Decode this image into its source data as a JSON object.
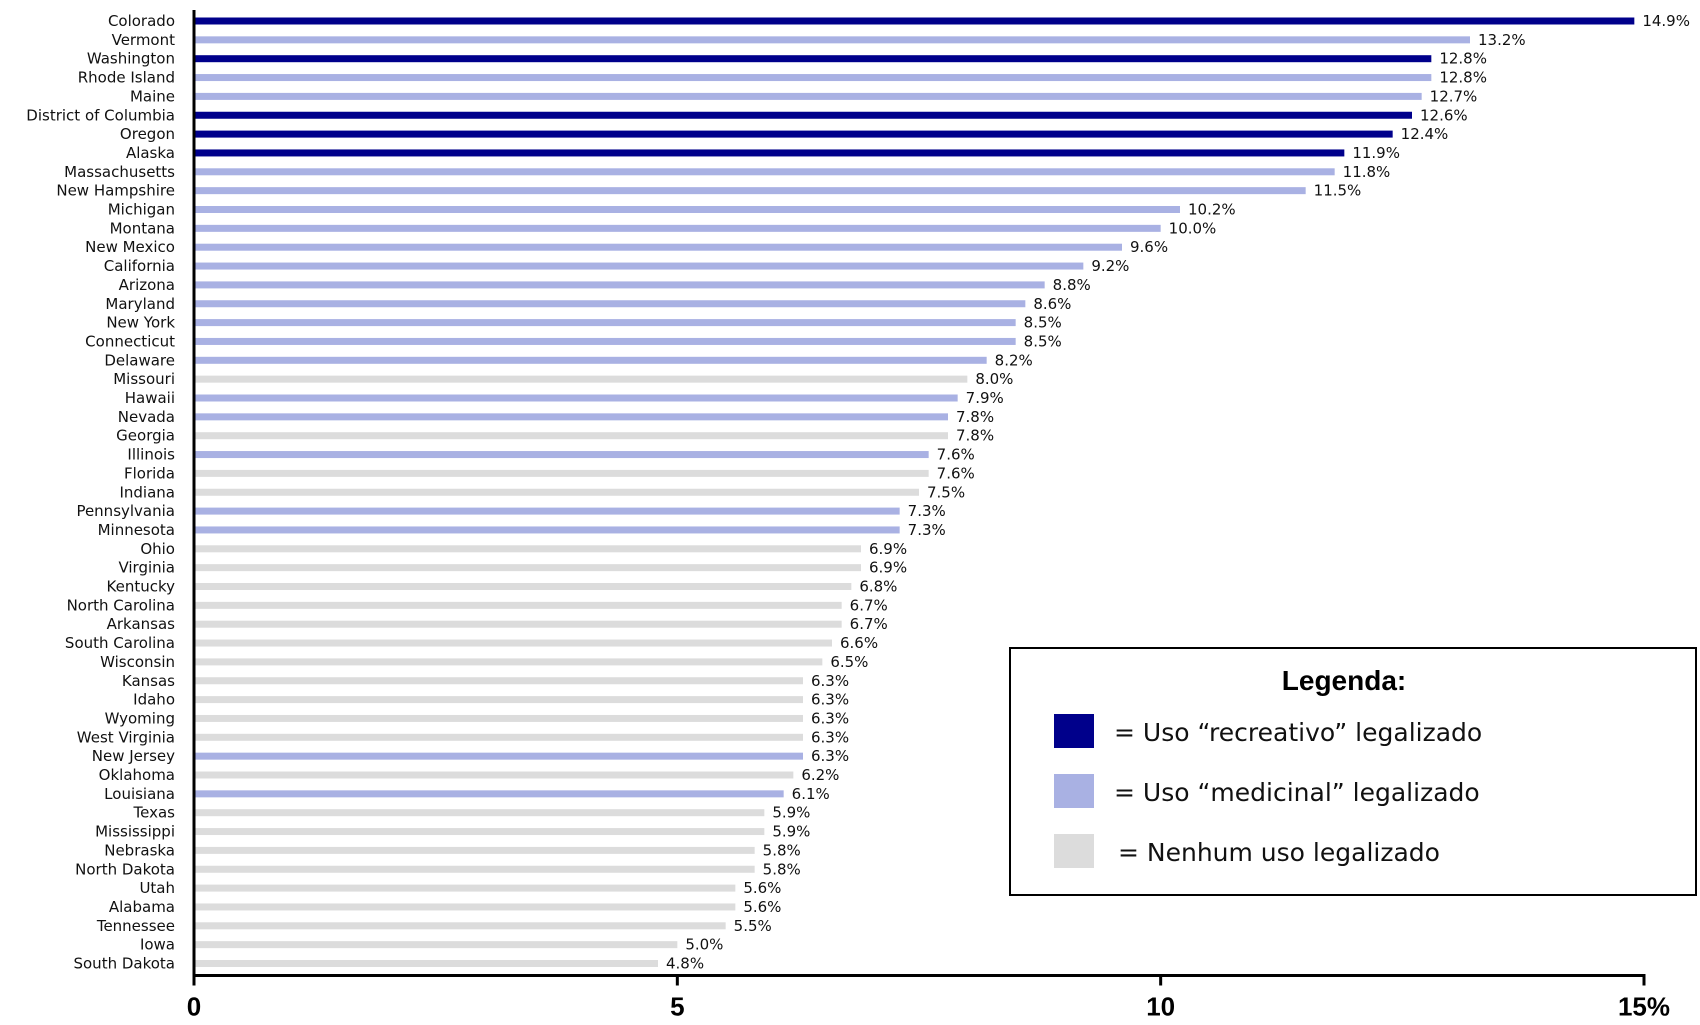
{
  "chart_data": {
    "type": "bar",
    "orientation": "horizontal",
    "title": "",
    "xlabel": "",
    "ylabel": "",
    "xlim": [
      0,
      15
    ],
    "x_ticks": [
      {
        "value": 0,
        "label": "0"
      },
      {
        "value": 5,
        "label": "5"
      },
      {
        "value": 10,
        "label": "10"
      },
      {
        "value": 15,
        "label": "15%"
      }
    ],
    "grid": false,
    "legend": {
      "title": "Legenda:",
      "placement": "bottom-right",
      "entries": [
        {
          "key": "recreational",
          "label": "= Uso “recreativo” legalizado",
          "color": "#00008B"
        },
        {
          "key": "medicinal",
          "label": "= Uso “medicinal” legalizado",
          "color": "#A9B1E3"
        },
        {
          "key": "none",
          "label": "= Nenhum uso legalizado",
          "color": "#DCDCDC"
        }
      ]
    },
    "bars": [
      {
        "category": "Colorado",
        "value": 14.9,
        "label": "14.9%",
        "group": "recreational"
      },
      {
        "category": "Vermont",
        "value": 13.2,
        "label": "13.2%",
        "group": "medicinal"
      },
      {
        "category": "Washington",
        "value": 12.8,
        "label": "12.8%",
        "group": "recreational"
      },
      {
        "category": "Rhode Island",
        "value": 12.8,
        "label": "12.8%",
        "group": "medicinal"
      },
      {
        "category": "Maine",
        "value": 12.7,
        "label": "12.7%",
        "group": "medicinal"
      },
      {
        "category": "District of Columbia",
        "value": 12.6,
        "label": "12.6%",
        "group": "recreational"
      },
      {
        "category": "Oregon",
        "value": 12.4,
        "label": "12.4%",
        "group": "recreational"
      },
      {
        "category": "Alaska",
        "value": 11.9,
        "label": "11.9%",
        "group": "recreational"
      },
      {
        "category": "Massachusetts",
        "value": 11.8,
        "label": "11.8%",
        "group": "medicinal"
      },
      {
        "category": "New Hampshire",
        "value": 11.5,
        "label": "11.5%",
        "group": "medicinal"
      },
      {
        "category": "Michigan",
        "value": 10.2,
        "label": "10.2%",
        "group": "medicinal"
      },
      {
        "category": "Montana",
        "value": 10.0,
        "label": "10.0%",
        "group": "medicinal"
      },
      {
        "category": "New Mexico",
        "value": 9.6,
        "label": "9.6%",
        "group": "medicinal"
      },
      {
        "category": "California",
        "value": 9.2,
        "label": "9.2%",
        "group": "medicinal"
      },
      {
        "category": "Arizona",
        "value": 8.8,
        "label": "8.8%",
        "group": "medicinal"
      },
      {
        "category": "Maryland",
        "value": 8.6,
        "label": "8.6%",
        "group": "medicinal"
      },
      {
        "category": "New York",
        "value": 8.5,
        "label": "8.5%",
        "group": "medicinal"
      },
      {
        "category": "Connecticut",
        "value": 8.5,
        "label": "8.5%",
        "group": "medicinal"
      },
      {
        "category": "Delaware",
        "value": 8.2,
        "label": "8.2%",
        "group": "medicinal"
      },
      {
        "category": "Missouri",
        "value": 8.0,
        "label": "8.0%",
        "group": "none"
      },
      {
        "category": "Hawaii",
        "value": 7.9,
        "label": "7.9%",
        "group": "medicinal"
      },
      {
        "category": "Nevada",
        "value": 7.8,
        "label": "7.8%",
        "group": "medicinal"
      },
      {
        "category": "Georgia",
        "value": 7.8,
        "label": "7.8%",
        "group": "none"
      },
      {
        "category": "Illinois",
        "value": 7.6,
        "label": "7.6%",
        "group": "medicinal"
      },
      {
        "category": "Florida",
        "value": 7.6,
        "label": "7.6%",
        "group": "none"
      },
      {
        "category": "Indiana",
        "value": 7.5,
        "label": "7.5%",
        "group": "none"
      },
      {
        "category": "Pennsylvania",
        "value": 7.3,
        "label": "7.3%",
        "group": "medicinal"
      },
      {
        "category": "Minnesota",
        "value": 7.3,
        "label": "7.3%",
        "group": "medicinal"
      },
      {
        "category": "Ohio",
        "value": 6.9,
        "label": "6.9%",
        "group": "none"
      },
      {
        "category": "Virginia",
        "value": 6.9,
        "label": "6.9%",
        "group": "none"
      },
      {
        "category": "Kentucky",
        "value": 6.8,
        "label": "6.8%",
        "group": "none"
      },
      {
        "category": "North Carolina",
        "value": 6.7,
        "label": "6.7%",
        "group": "none"
      },
      {
        "category": "Arkansas",
        "value": 6.7,
        "label": "6.7%",
        "group": "none"
      },
      {
        "category": "South Carolina",
        "value": 6.6,
        "label": "6.6%",
        "group": "none"
      },
      {
        "category": "Wisconsin",
        "value": 6.5,
        "label": "6.5%",
        "group": "none"
      },
      {
        "category": "Kansas",
        "value": 6.3,
        "label": "6.3%",
        "group": "none"
      },
      {
        "category": "Idaho",
        "value": 6.3,
        "label": "6.3%",
        "group": "none"
      },
      {
        "category": "Wyoming",
        "value": 6.3,
        "label": "6.3%",
        "group": "none"
      },
      {
        "category": "West Virginia",
        "value": 6.3,
        "label": "6.3%",
        "group": "none"
      },
      {
        "category": "New Jersey",
        "value": 6.3,
        "label": "6.3%",
        "group": "medicinal"
      },
      {
        "category": "Oklahoma",
        "value": 6.2,
        "label": "6.2%",
        "group": "none"
      },
      {
        "category": "Louisiana",
        "value": 6.1,
        "label": "6.1%",
        "group": "medicinal"
      },
      {
        "category": "Texas",
        "value": 5.9,
        "label": "5.9%",
        "group": "none"
      },
      {
        "category": "Mississippi",
        "value": 5.9,
        "label": "5.9%",
        "group": "none"
      },
      {
        "category": "Nebraska",
        "value": 5.8,
        "label": "5.8%",
        "group": "none"
      },
      {
        "category": "North Dakota",
        "value": 5.8,
        "label": "5.8%",
        "group": "none"
      },
      {
        "category": "Utah",
        "value": 5.6,
        "label": "5.6%",
        "group": "none"
      },
      {
        "category": "Alabama",
        "value": 5.6,
        "label": "5.6%",
        "group": "none"
      },
      {
        "category": "Tennessee",
        "value": 5.5,
        "label": "5.5%",
        "group": "none"
      },
      {
        "category": "Iowa",
        "value": 5.0,
        "label": "5.0%",
        "group": "none"
      },
      {
        "category": "South Dakota",
        "value": 4.8,
        "label": "4.8%",
        "group": "none"
      }
    ]
  }
}
